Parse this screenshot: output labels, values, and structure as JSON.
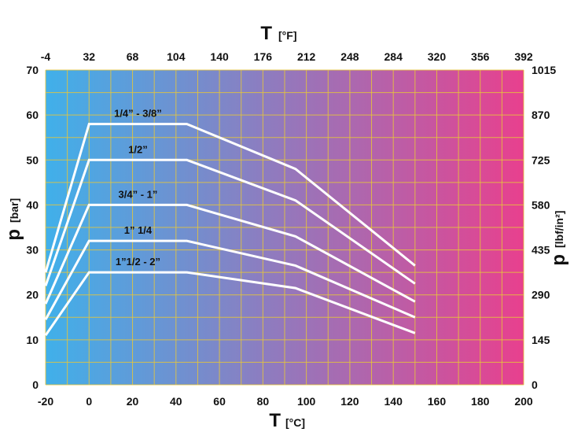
{
  "chart_data": {
    "type": "line",
    "title": "",
    "x_axis": {
      "title": "T",
      "unit": "[°C]",
      "range": [
        -20,
        200
      ],
      "ticks": [
        -20,
        0,
        20,
        40,
        60,
        80,
        100,
        120,
        140,
        160,
        180,
        200
      ]
    },
    "x2_axis": {
      "title": "T",
      "unit": "[°F]",
      "ticks": [
        "-4",
        "32",
        "68",
        "104",
        "140",
        "176",
        "212",
        "248",
        "284",
        "320",
        "356",
        "392"
      ]
    },
    "y_axis": {
      "title": "p",
      "unit": "[bar]",
      "range": [
        0,
        70
      ],
      "ticks": [
        0,
        10,
        20,
        30,
        40,
        50,
        60,
        70
      ]
    },
    "y2_axis": {
      "title": "p",
      "unit": "[lbf/in²]",
      "ticks": [
        "0",
        "145",
        "290",
        "435",
        "580",
        "725",
        "870",
        "1015"
      ]
    },
    "grid": true,
    "background_gradient": [
      "#40b0ea",
      "#e8408e"
    ],
    "grid_color": "#e6c63a",
    "line_color": "#ffffff",
    "series": [
      {
        "name": "1/4” - 3/8”",
        "x": [
          -20,
          0,
          45,
          95,
          150
        ],
        "y": [
          25,
          58,
          58,
          48,
          26.5
        ]
      },
      {
        "name": "1/2”",
        "x": [
          -20,
          0,
          45,
          95,
          150
        ],
        "y": [
          22,
          50,
          50,
          41,
          22.5
        ]
      },
      {
        "name": "3/4” - 1”",
        "x": [
          -20,
          0,
          45,
          95,
          150
        ],
        "y": [
          18,
          40,
          40,
          33,
          18.5
        ]
      },
      {
        "name": "1” 1/4",
        "x": [
          -20,
          0,
          45,
          95,
          150
        ],
        "y": [
          14.5,
          32,
          32,
          26.5,
          15
        ]
      },
      {
        "name": "1”1/2 - 2”",
        "x": [
          -20,
          0,
          45,
          95,
          150
        ],
        "y": [
          11,
          25,
          25,
          21.5,
          11.5
        ]
      }
    ]
  }
}
